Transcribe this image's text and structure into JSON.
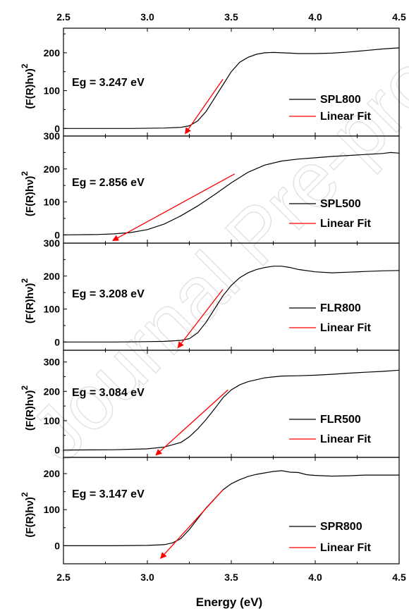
{
  "watermark": "Journal Pre-proof",
  "colors": {
    "data": "#000000",
    "fit": "#ff0000",
    "axis": "#000000",
    "watermark": "#e2e2e2"
  },
  "chart_data": {
    "type": "line",
    "xlabel": "Energy (eV)",
    "xlim": [
      2.5,
      4.5
    ],
    "xticks": [
      "2.5",
      "3.0",
      "3.5",
      "4.0",
      "4.5"
    ],
    "panels": [
      {
        "ylabel": "(F(R)hν)",
        "ylabel_exp": "2",
        "ylim": [
          -20,
          265
        ],
        "yticks": [
          0,
          100,
          200
        ],
        "annotation": "Eg = 3.247 eV",
        "legend": [
          "SPL800",
          "Linear Fit"
        ],
        "series": [
          {
            "name": "SPL800",
            "x": [
              2.5,
              2.7,
              2.9,
              3.1,
              3.2,
              3.25,
              3.3,
              3.35,
              3.4,
              3.45,
              3.5,
              3.55,
              3.6,
              3.65,
              3.7,
              3.75,
              3.8,
              3.85,
              3.9,
              4.0,
              4.1,
              4.2,
              4.3,
              4.4,
              4.5
            ],
            "y": [
              0,
              0,
              0,
              1,
              3,
              7,
              20,
              45,
              80,
              115,
              150,
              175,
              188,
              196,
              200,
              201,
              200,
              199,
              198,
              198,
              199,
              202,
              206,
              210,
              213
            ]
          },
          {
            "name": "Linear Fit",
            "x": [
              3.247,
              3.45
            ],
            "y": [
              0,
              130
            ]
          }
        ]
      },
      {
        "ylabel": "(F(R)hν)",
        "ylabel_exp": "2",
        "ylim": [
          -25,
          300
        ],
        "yticks": [
          0,
          100,
          200,
          300
        ],
        "annotation": "Eg = 2.856 eV",
        "legend": [
          "SPL500",
          "Linear Fit"
        ],
        "series": [
          {
            "name": "SPL500",
            "x": [
              2.5,
              2.7,
              2.8,
              2.9,
              3.0,
              3.1,
              3.2,
              3.3,
              3.4,
              3.5,
              3.6,
              3.7,
              3.8,
              3.9,
              4.0,
              4.1,
              4.2,
              4.3,
              4.4,
              4.45,
              4.5
            ],
            "y": [
              0,
              1,
              3,
              7,
              16,
              33,
              58,
              88,
              122,
              158,
              190,
              212,
              224,
              230,
              234,
              238,
              241,
              244,
              247,
              250,
              248
            ]
          },
          {
            "name": "Linear Fit",
            "x": [
              2.856,
              3.52
            ],
            "y": [
              0,
              185
            ]
          }
        ]
      },
      {
        "ylabel": "(F(R)hν)",
        "ylabel_exp": "2",
        "ylim": [
          -25,
          300
        ],
        "yticks": [
          0,
          100,
          200,
          300
        ],
        "annotation": "Eg = 3.208 eV",
        "legend": [
          "FLR800",
          "Linear Fit"
        ],
        "series": [
          {
            "name": "FLR800",
            "x": [
              2.5,
              2.8,
              3.0,
              3.1,
              3.2,
              3.25,
              3.3,
              3.35,
              3.4,
              3.45,
              3.5,
              3.55,
              3.6,
              3.65,
              3.7,
              3.75,
              3.8,
              3.85,
              3.9,
              4.0,
              4.1,
              4.2,
              4.3,
              4.4,
              4.5
            ],
            "y": [
              0,
              0,
              1,
              2,
              5,
              10,
              28,
              60,
              100,
              140,
              172,
              195,
              210,
              220,
              226,
              230,
              230,
              226,
              220,
              213,
              210,
              212,
              214,
              216,
              217
            ]
          },
          {
            "name": "Linear Fit",
            "x": [
              3.208,
              3.45
            ],
            "y": [
              0,
              160
            ]
          }
        ]
      },
      {
        "ylabel": "(F(R)hν)",
        "ylabel_exp": "2",
        "ylim": [
          -25,
          340
        ],
        "yticks": [
          0,
          100,
          200,
          300
        ],
        "annotation": "Eg = 3.084 eV",
        "legend": [
          "FLR500",
          "Linear Fit"
        ],
        "series": [
          {
            "name": "FLR500",
            "x": [
              2.5,
              2.8,
              3.0,
              3.1,
              3.2,
              3.25,
              3.3,
              3.35,
              3.4,
              3.45,
              3.5,
              3.55,
              3.6,
              3.7,
              3.8,
              3.9,
              4.0,
              4.1,
              4.2,
              4.3,
              4.4,
              4.5
            ],
            "y": [
              0,
              1,
              4,
              10,
              26,
              45,
              72,
              104,
              140,
              178,
              205,
              222,
              233,
              246,
              252,
              253,
              255,
              258,
              262,
              265,
              268,
              272
            ]
          },
          {
            "name": "Linear Fit",
            "x": [
              3.084,
              3.48
            ],
            "y": [
              0,
              205
            ]
          }
        ]
      },
      {
        "ylabel": "(F(R)hν)",
        "ylabel_exp": "2",
        "ylim": [
          -50,
          245
        ],
        "yticks": [
          0,
          100,
          200
        ],
        "annotation": "Eg = 3.147 eV",
        "legend": [
          "SPR800",
          "Linear Fit"
        ],
        "series": [
          {
            "name": "SPR800",
            "x": [
              2.5,
              2.8,
              3.0,
              3.1,
              3.15,
              3.2,
              3.25,
              3.3,
              3.35,
              3.4,
              3.45,
              3.5,
              3.55,
              3.6,
              3.65,
              3.7,
              3.75,
              3.8,
              3.85,
              3.9,
              3.95,
              4.0,
              4.1,
              4.2,
              4.3,
              4.4,
              4.5
            ],
            "y": [
              0,
              0,
              1,
              3,
              8,
              20,
              45,
              75,
              105,
              130,
              155,
              172,
              183,
              192,
              198,
              202,
              206,
              208,
              204,
              203,
              197,
              195,
              193,
              194,
              196,
              196,
              196
            ]
          },
          {
            "name": "Linear Fit",
            "x": [
              3.147,
              3.45
            ],
            "y": [
              0,
              155
            ]
          }
        ]
      }
    ]
  }
}
